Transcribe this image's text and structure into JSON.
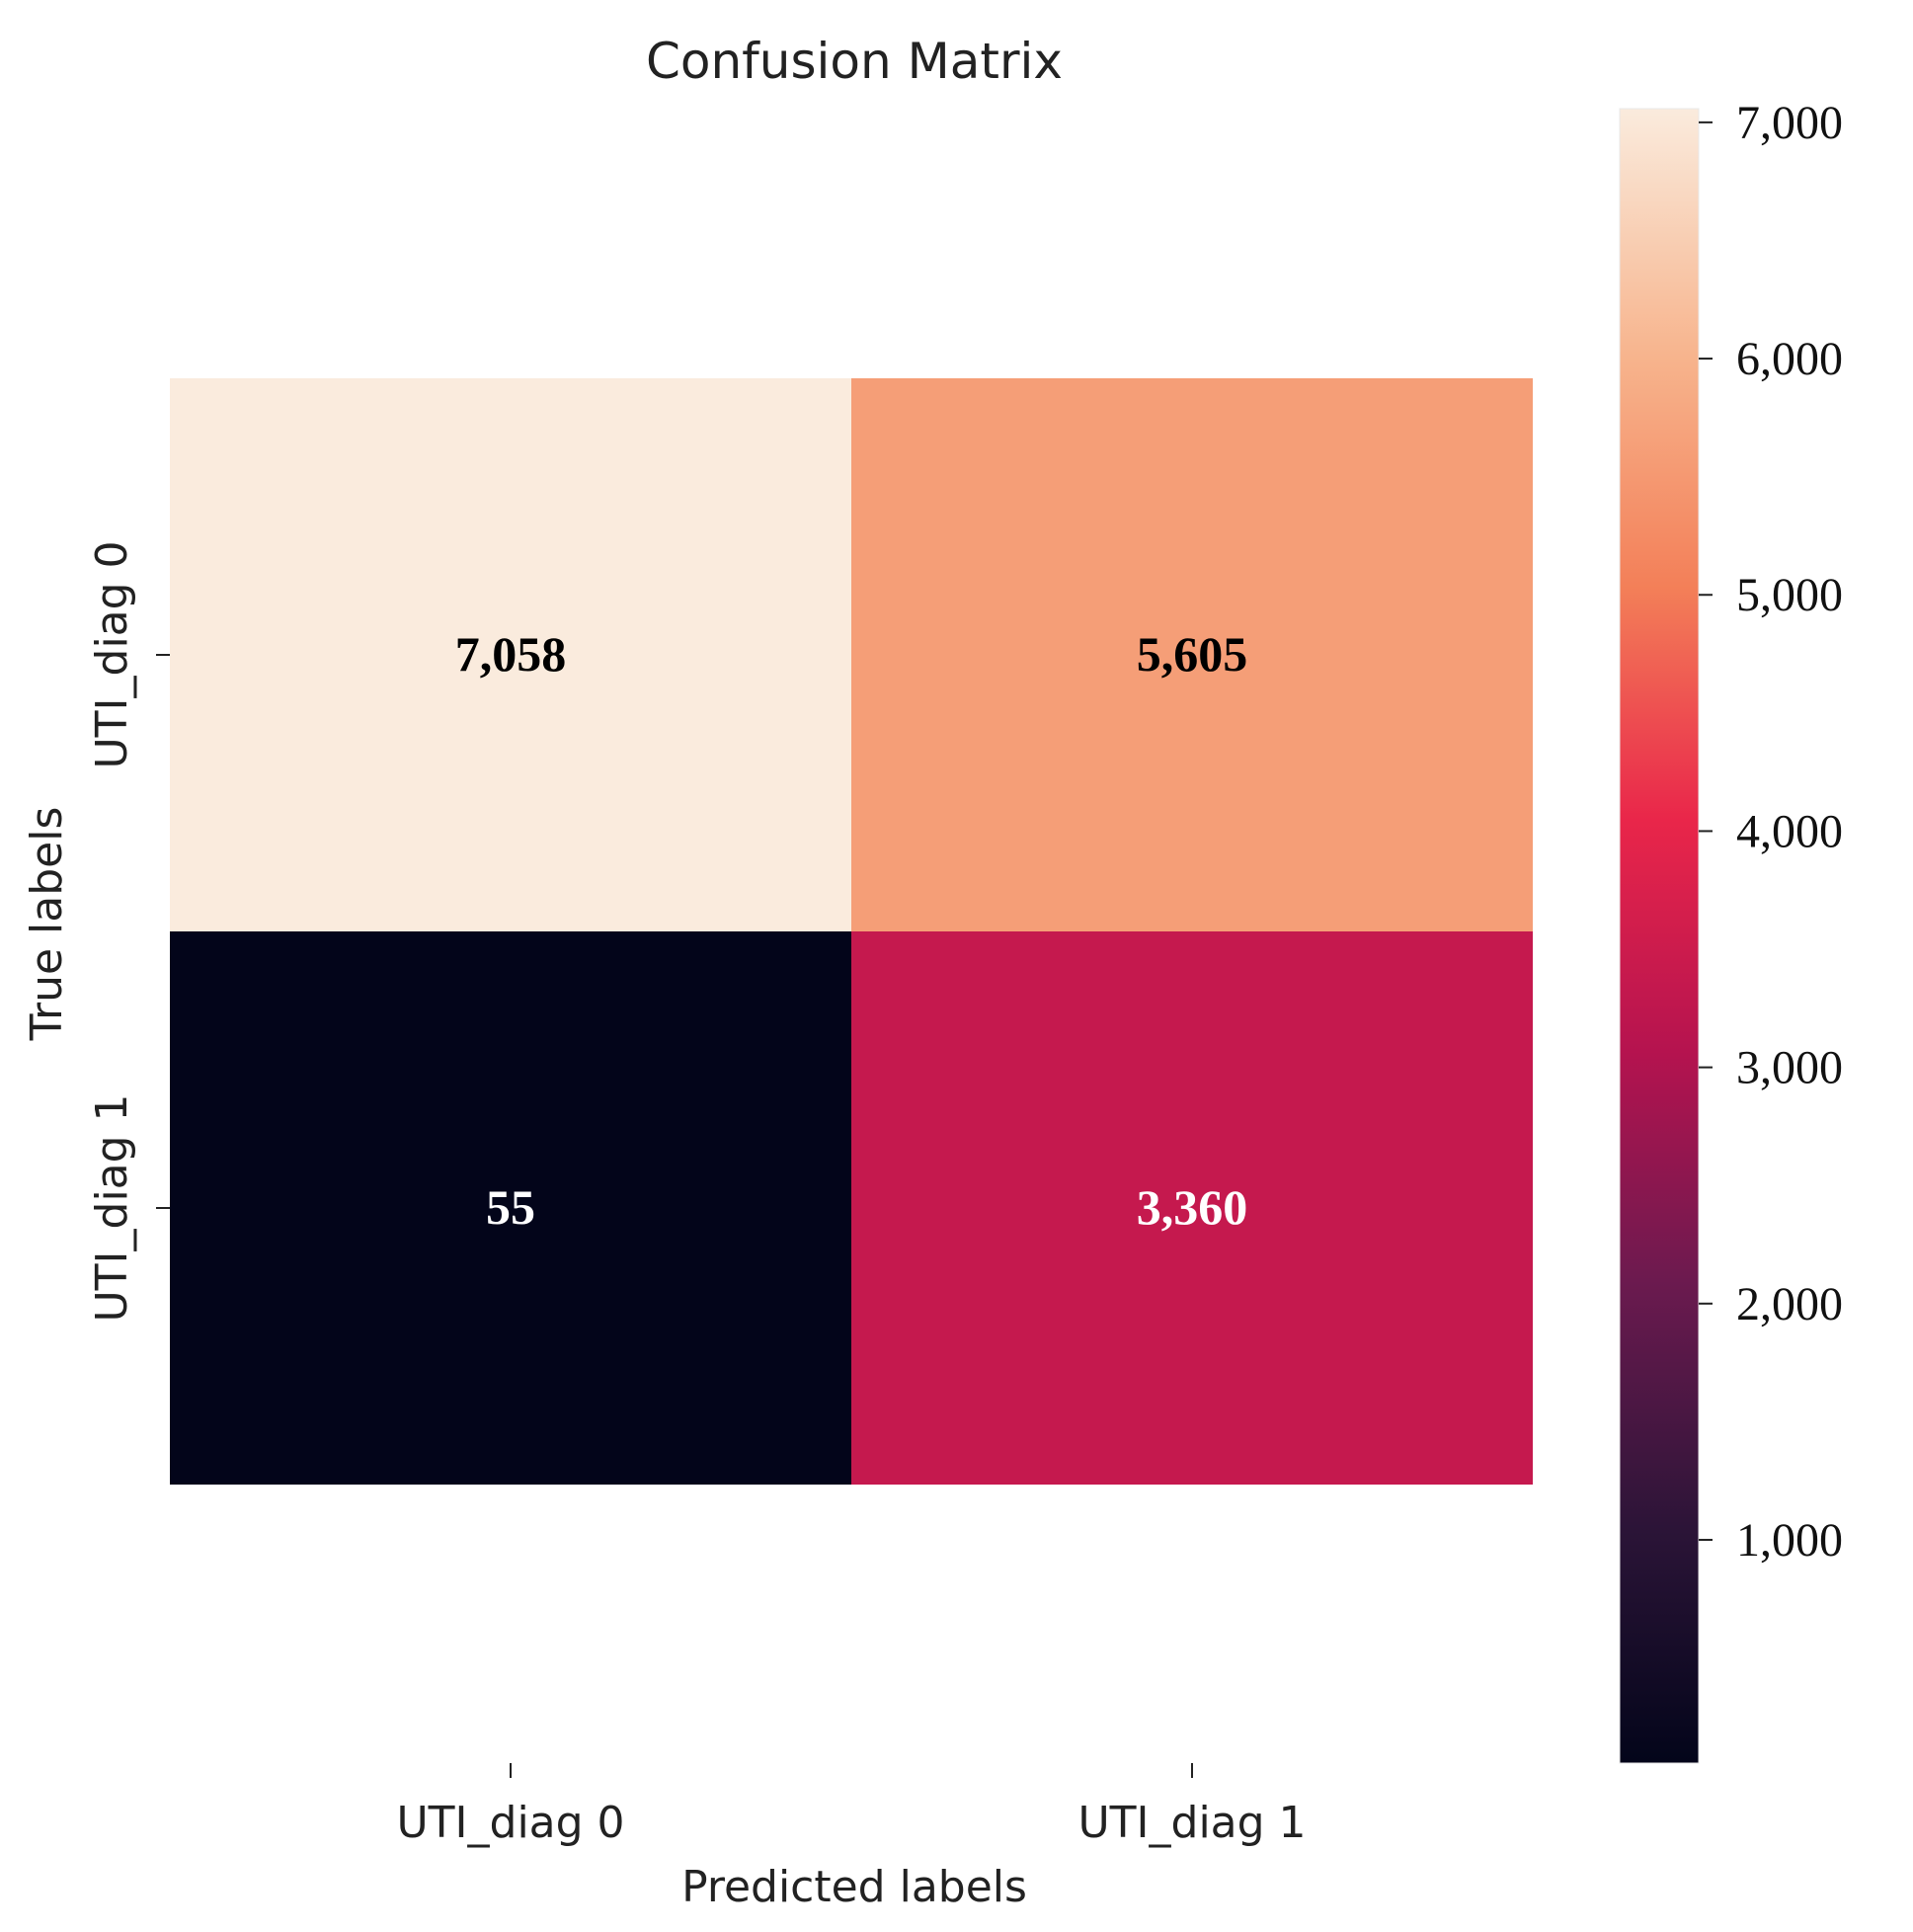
{
  "chart_data": {
    "type": "heatmap",
    "title": "Confusion Matrix",
    "xlabel": "Predicted labels",
    "ylabel": "True labels",
    "x_categories": [
      "UTI_diag 0",
      "UTI_diag 1"
    ],
    "y_categories": [
      "UTI_diag 0",
      "UTI_diag 1"
    ],
    "values": [
      [
        7058,
        5605
      ],
      [
        55,
        3360
      ]
    ],
    "value_labels": [
      [
        "7,058",
        "5,605"
      ],
      [
        "55",
        "3,360"
      ]
    ],
    "colorbar": {
      "range": [
        55,
        7058
      ],
      "ticks": [
        1000,
        2000,
        3000,
        4000,
        5000,
        6000,
        7000
      ],
      "tick_labels": [
        "1,000",
        "2,000",
        "3,000",
        "4,000",
        "5,000",
        "6,000",
        "7,000"
      ]
    },
    "colormap": "rocket",
    "colormap_stops": [
      [
        0.0,
        "#03051a"
      ],
      [
        0.14,
        "#2b1437"
      ],
      [
        0.29,
        "#6b1a4f"
      ],
      [
        0.43,
        "#b5134f"
      ],
      [
        0.57,
        "#e9264a"
      ],
      [
        0.71,
        "#f37f58"
      ],
      [
        0.85,
        "#f7b48d"
      ],
      [
        1.0,
        "#faebdd"
      ]
    ]
  }
}
